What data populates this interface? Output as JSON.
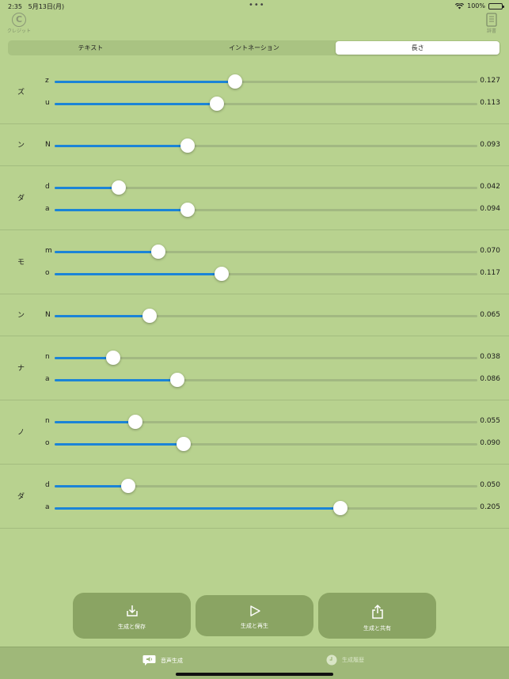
{
  "status": {
    "time": "2:35",
    "date": "5月13日(月)",
    "battery": "100%"
  },
  "top": {
    "credit_label": "クレジット",
    "dict_label": "辞書"
  },
  "tabs": [
    {
      "label": "テキスト",
      "active": false
    },
    {
      "label": "イントネーション",
      "active": false
    },
    {
      "label": "長さ",
      "active": true
    }
  ],
  "groups": [
    {
      "kana": "ズ",
      "rows": [
        {
          "ph": "z",
          "value": "0.127",
          "pos": 0.427
        },
        {
          "ph": "u",
          "value": "0.113",
          "pos": 0.383
        }
      ]
    },
    {
      "kana": "ン",
      "rows": [
        {
          "ph": "N",
          "value": "0.093",
          "pos": 0.315
        }
      ]
    },
    {
      "kana": "ダ",
      "rows": [
        {
          "ph": "d",
          "value": "0.042",
          "pos": 0.152
        },
        {
          "ph": "a",
          "value": "0.094",
          "pos": 0.315
        }
      ]
    },
    {
      "kana": "モ",
      "rows": [
        {
          "ph": "m",
          "value": "0.070",
          "pos": 0.245
        },
        {
          "ph": "o",
          "value": "0.117",
          "pos": 0.396
        }
      ]
    },
    {
      "kana": "ン",
      "rows": [
        {
          "ph": "N",
          "value": "0.065",
          "pos": 0.225
        }
      ]
    },
    {
      "kana": "ナ",
      "rows": [
        {
          "ph": "n",
          "value": "0.038",
          "pos": 0.139
        },
        {
          "ph": "a",
          "value": "0.086",
          "pos": 0.29
        }
      ]
    },
    {
      "kana": "ノ",
      "rows": [
        {
          "ph": "n",
          "value": "0.055",
          "pos": 0.191
        },
        {
          "ph": "o",
          "value": "0.090",
          "pos": 0.305
        }
      ]
    },
    {
      "kana": "ダ",
      "rows": [
        {
          "ph": "d",
          "value": "0.050",
          "pos": 0.175
        },
        {
          "ph": "a",
          "value": "0.205",
          "pos": 0.676
        }
      ]
    }
  ],
  "actions": {
    "save": "生成と保存",
    "play": "生成と再生",
    "share": "生成と共有"
  },
  "tabbar": {
    "generate": "音声生成",
    "history": "生成履歴"
  },
  "colors": {
    "background": "#b8d28f",
    "accent": "#1b84d7",
    "button": "#8aa463"
  }
}
